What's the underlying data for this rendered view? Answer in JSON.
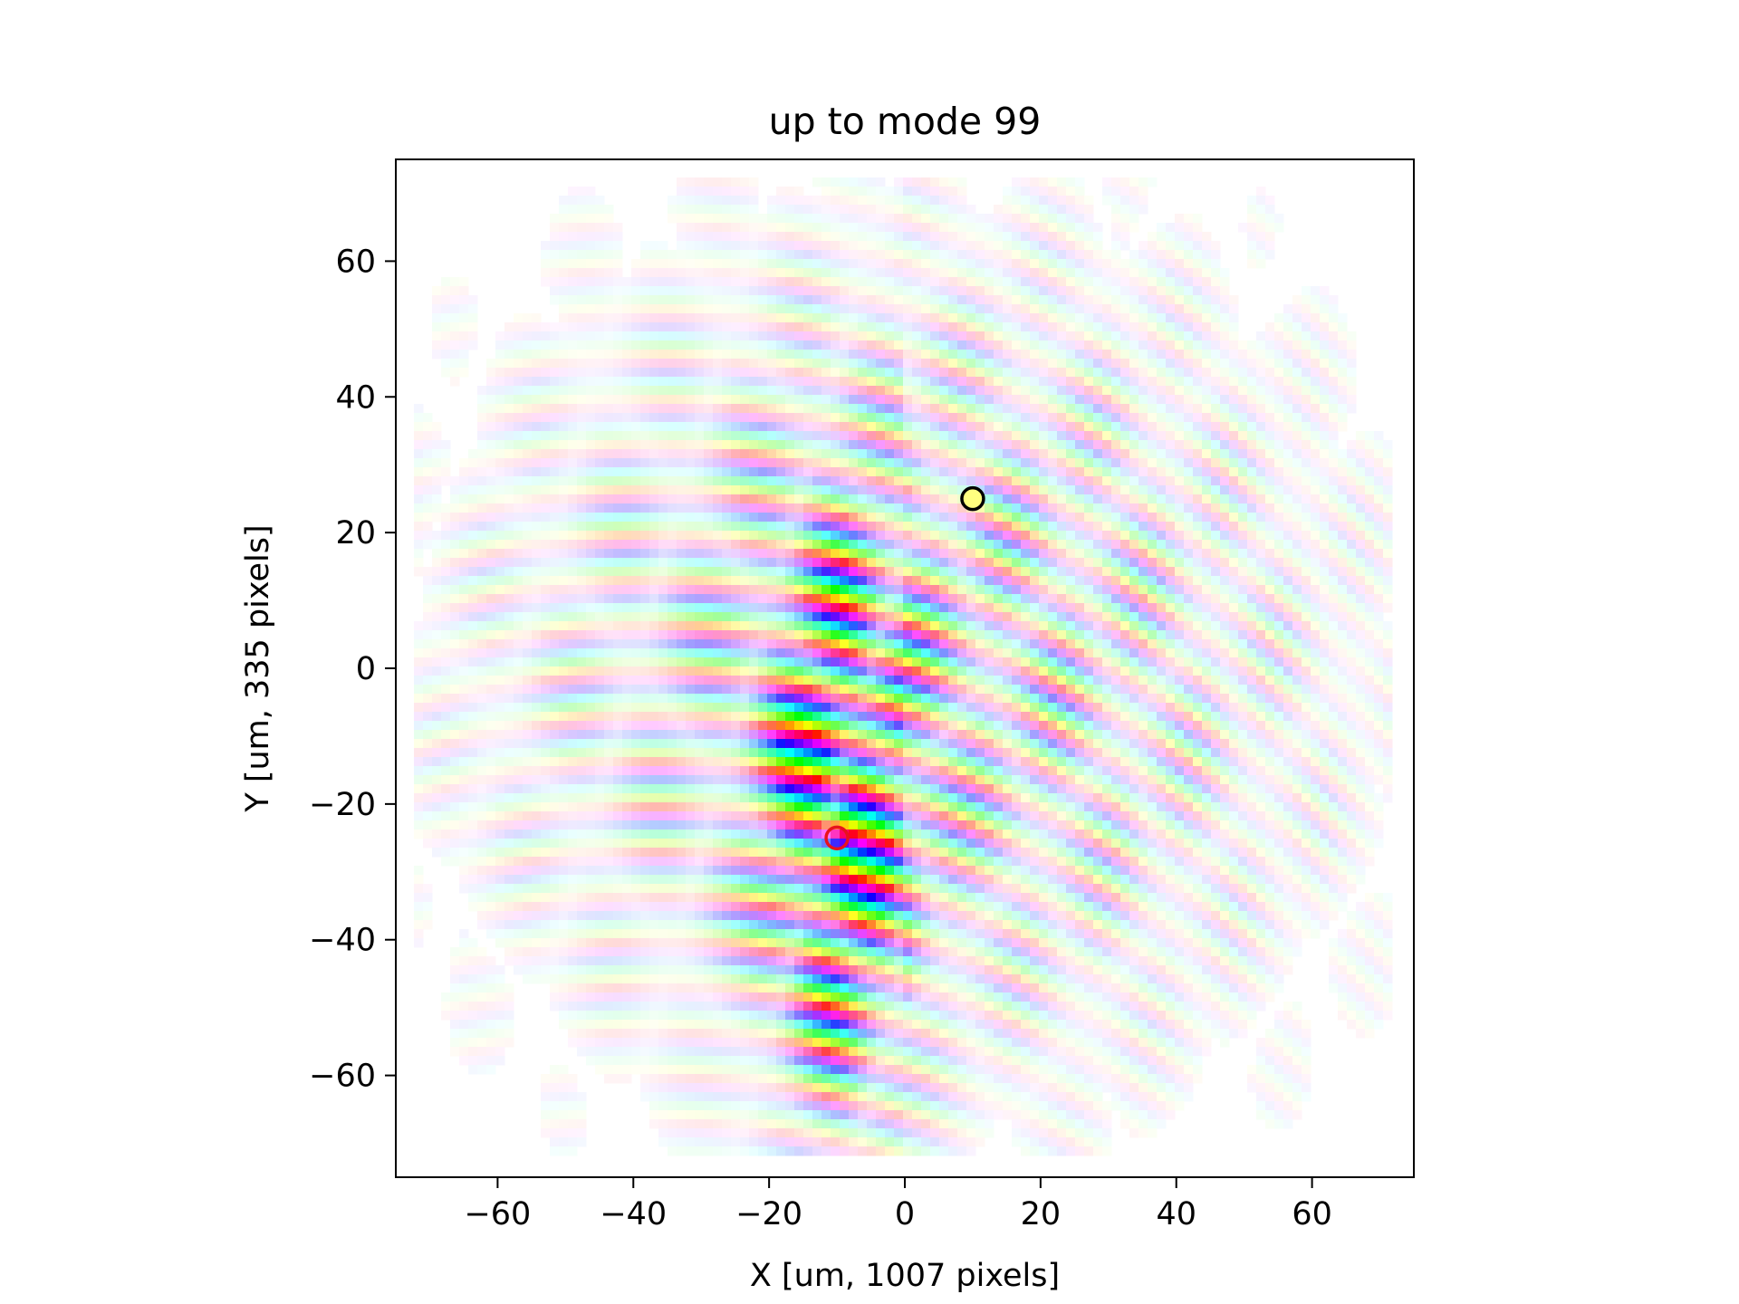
{
  "chart_data": {
    "type": "heatmap",
    "title": "up to mode 99",
    "xlabel": "X [um, 1007 pixels]",
    "ylabel": "Y [um, 335 pixels]",
    "xlim": [
      -75,
      75
    ],
    "ylim": [
      -75,
      75
    ],
    "xticks": [
      -60,
      -40,
      -20,
      0,
      20,
      40,
      60
    ],
    "yticks": [
      -60,
      -40,
      -20,
      0,
      20,
      40,
      60
    ],
    "xtick_labels": [
      "−60",
      "−40",
      "−20",
      "0",
      "20",
      "40",
      "60"
    ],
    "ytick_labels": [
      "−60",
      "−40",
      "−20",
      "0",
      "20",
      "40",
      "60"
    ],
    "colormap": "complex phase (hue) / amplitude (saturation)",
    "grid": false,
    "markers": [
      {
        "x": -10,
        "y": -25,
        "edge_color": "#e8121c",
        "face_color": "none"
      },
      {
        "x": 10,
        "y": 25,
        "edge_color": "#000000",
        "face_color": "#ffff80"
      }
    ]
  }
}
